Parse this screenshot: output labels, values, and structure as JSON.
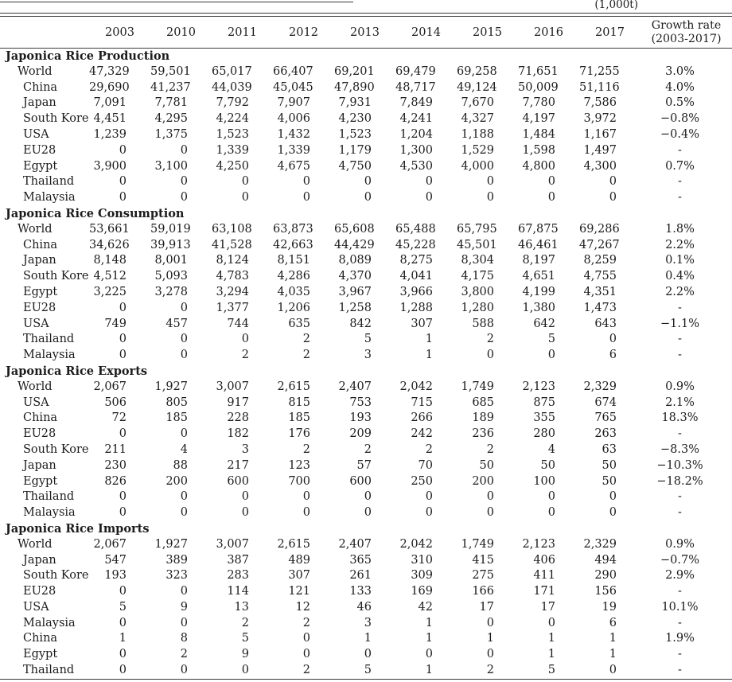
{
  "unit_label": "(1,000t)",
  "table": {
    "year_headers": [
      "2003",
      "2010",
      "2011",
      "2012",
      "2013",
      "2014",
      "2015",
      "2016",
      "2017"
    ],
    "growth_header": {
      "line1": "Growth rate",
      "line2": "(2003-2017)"
    },
    "sections": [
      {
        "title": "Japonica Rice Production",
        "rows": [
          {
            "label": "World",
            "indent": 1,
            "values": [
              "47,329",
              "59,501",
              "65,017",
              "66,407",
              "69,201",
              "69,479",
              "69,258",
              "71,651",
              "71,255"
            ],
            "growth": "3.0%"
          },
          {
            "label": "China",
            "indent": 2,
            "values": [
              "29,690",
              "41,237",
              "44,039",
              "45,045",
              "47,890",
              "48,717",
              "49,124",
              "50,009",
              "51,116"
            ],
            "growth": "4.0%"
          },
          {
            "label": "Japan",
            "indent": 2,
            "values": [
              "7,091",
              "7,781",
              "7,792",
              "7,907",
              "7,931",
              "7,849",
              "7,670",
              "7,780",
              "7,586"
            ],
            "growth": "0.5%"
          },
          {
            "label": "South Korea",
            "indent": 2,
            "values": [
              "4,451",
              "4,295",
              "4,224",
              "4,006",
              "4,230",
              "4,241",
              "4,327",
              "4,197",
              "3,972"
            ],
            "growth": "−0.8%"
          },
          {
            "label": "USA",
            "indent": 2,
            "values": [
              "1,239",
              "1,375",
              "1,523",
              "1,432",
              "1,523",
              "1,204",
              "1,188",
              "1,484",
              "1,167"
            ],
            "growth": "−0.4%"
          },
          {
            "label": "EU28",
            "indent": 2,
            "values": [
              "0",
              "0",
              "1,339",
              "1,339",
              "1,179",
              "1,300",
              "1,529",
              "1,598",
              "1,497"
            ],
            "growth": "-"
          },
          {
            "label": "Egypt",
            "indent": 2,
            "values": [
              "3,900",
              "3,100",
              "4,250",
              "4,675",
              "4,750",
              "4,530",
              "4,000",
              "4,800",
              "4,300"
            ],
            "growth": "0.7%"
          },
          {
            "label": "Thailand",
            "indent": 2,
            "values": [
              "0",
              "0",
              "0",
              "0",
              "0",
              "0",
              "0",
              "0",
              "0"
            ],
            "growth": "-"
          },
          {
            "label": "Malaysia",
            "indent": 2,
            "values": [
              "0",
              "0",
              "0",
              "0",
              "0",
              "0",
              "0",
              "0",
              "0"
            ],
            "growth": "-"
          }
        ]
      },
      {
        "title": "Japonica Rice Consumption",
        "rows": [
          {
            "label": "World",
            "indent": 1,
            "values": [
              "53,661",
              "59,019",
              "63,108",
              "63,873",
              "65,608",
              "65,488",
              "65,795",
              "67,875",
              "69,286"
            ],
            "growth": "1.8%"
          },
          {
            "label": "China",
            "indent": 2,
            "values": [
              "34,626",
              "39,913",
              "41,528",
              "42,663",
              "44,429",
              "45,228",
              "45,501",
              "46,461",
              "47,267"
            ],
            "growth": "2.2%"
          },
          {
            "label": "Japan",
            "indent": 2,
            "values": [
              "8,148",
              "8,001",
              "8,124",
              "8,151",
              "8,089",
              "8,275",
              "8,304",
              "8,197",
              "8,259"
            ],
            "growth": "0.1%"
          },
          {
            "label": "South Korea",
            "indent": 2,
            "values": [
              "4,512",
              "5,093",
              "4,783",
              "4,286",
              "4,370",
              "4,041",
              "4,175",
              "4,651",
              "4,755"
            ],
            "growth": "0.4%"
          },
          {
            "label": "Egypt",
            "indent": 2,
            "values": [
              "3,225",
              "3,278",
              "3,294",
              "4,035",
              "3,967",
              "3,966",
              "3,800",
              "4,199",
              "4,351"
            ],
            "growth": "2.2%"
          },
          {
            "label": "EU28",
            "indent": 2,
            "values": [
              "0",
              "0",
              "1,377",
              "1,206",
              "1,258",
              "1,288",
              "1,280",
              "1,380",
              "1,473"
            ],
            "growth": "-"
          },
          {
            "label": "USA",
            "indent": 2,
            "values": [
              "749",
              "457",
              "744",
              "635",
              "842",
              "307",
              "588",
              "642",
              "643"
            ],
            "growth": "−1.1%"
          },
          {
            "label": "Thailand",
            "indent": 2,
            "values": [
              "0",
              "0",
              "0",
              "2",
              "5",
              "1",
              "2",
              "5",
              "0"
            ],
            "growth": "-"
          },
          {
            "label": "Malaysia",
            "indent": 2,
            "values": [
              "0",
              "0",
              "2",
              "2",
              "3",
              "1",
              "0",
              "0",
              "6"
            ],
            "growth": "-"
          }
        ]
      },
      {
        "title": "Japonica Rice Exports",
        "rows": [
          {
            "label": "World",
            "indent": 1,
            "values": [
              "2,067",
              "1,927",
              "3,007",
              "2,615",
              "2,407",
              "2,042",
              "1,749",
              "2,123",
              "2,329"
            ],
            "growth": "0.9%"
          },
          {
            "label": "USA",
            "indent": 2,
            "values": [
              "506",
              "805",
              "917",
              "815",
              "753",
              "715",
              "685",
              "875",
              "674"
            ],
            "growth": "2.1%"
          },
          {
            "label": "China",
            "indent": 2,
            "values": [
              "72",
              "185",
              "228",
              "185",
              "193",
              "266",
              "189",
              "355",
              "765"
            ],
            "growth": "18.3%"
          },
          {
            "label": "EU28",
            "indent": 2,
            "values": [
              "0",
              "0",
              "182",
              "176",
              "209",
              "242",
              "236",
              "280",
              "263"
            ],
            "growth": "-"
          },
          {
            "label": "South Korea",
            "indent": 2,
            "values": [
              "211",
              "4",
              "3",
              "2",
              "2",
              "2",
              "2",
              "4",
              "63"
            ],
            "growth": "−8.3%"
          },
          {
            "label": "Japan",
            "indent": 2,
            "values": [
              "230",
              "88",
              "217",
              "123",
              "57",
              "70",
              "50",
              "50",
              "50"
            ],
            "growth": "−10.3%"
          },
          {
            "label": "Egypt",
            "indent": 2,
            "values": [
              "826",
              "200",
              "600",
              "700",
              "600",
              "250",
              "200",
              "100",
              "50"
            ],
            "growth": "−18.2%"
          },
          {
            "label": "Thailand",
            "indent": 2,
            "values": [
              "0",
              "0",
              "0",
              "0",
              "0",
              "0",
              "0",
              "0",
              "0"
            ],
            "growth": "-"
          },
          {
            "label": "Malaysia",
            "indent": 2,
            "values": [
              "0",
              "0",
              "0",
              "0",
              "0",
              "0",
              "0",
              "0",
              "0"
            ],
            "growth": "-"
          }
        ]
      },
      {
        "title": "Japonica Rice Imports",
        "rows": [
          {
            "label": "World",
            "indent": 1,
            "values": [
              "2,067",
              "1,927",
              "3,007",
              "2,615",
              "2,407",
              "2,042",
              "1,749",
              "2,123",
              "2,329"
            ],
            "growth": "0.9%"
          },
          {
            "label": "Japan",
            "indent": 2,
            "values": [
              "547",
              "389",
              "387",
              "489",
              "365",
              "310",
              "415",
              "406",
              "494"
            ],
            "growth": "−0.7%"
          },
          {
            "label": "South Korea",
            "indent": 2,
            "values": [
              "193",
              "323",
              "283",
              "307",
              "261",
              "309",
              "275",
              "411",
              "290"
            ],
            "growth": "2.9%"
          },
          {
            "label": "EU28",
            "indent": 2,
            "values": [
              "0",
              "0",
              "114",
              "121",
              "133",
              "169",
              "166",
              "171",
              "156"
            ],
            "growth": "-"
          },
          {
            "label": "USA",
            "indent": 2,
            "values": [
              "5",
              "9",
              "13",
              "12",
              "46",
              "42",
              "17",
              "17",
              "19"
            ],
            "growth": "10.1%"
          },
          {
            "label": "Malaysia",
            "indent": 2,
            "values": [
              "0",
              "0",
              "2",
              "2",
              "3",
              "1",
              "0",
              "0",
              "6"
            ],
            "growth": "-"
          },
          {
            "label": "China",
            "indent": 2,
            "values": [
              "1",
              "8",
              "5",
              "0",
              "1",
              "1",
              "1",
              "1",
              "1"
            ],
            "growth": "1.9%"
          },
          {
            "label": "Egypt",
            "indent": 2,
            "values": [
              "0",
              "2",
              "9",
              "0",
              "0",
              "0",
              "0",
              "1",
              "1"
            ],
            "growth": "-"
          },
          {
            "label": "Thailand",
            "indent": 2,
            "values": [
              "0",
              "0",
              "0",
              "2",
              "5",
              "1",
              "2",
              "5",
              "0"
            ],
            "growth": "-"
          }
        ]
      }
    ]
  }
}
